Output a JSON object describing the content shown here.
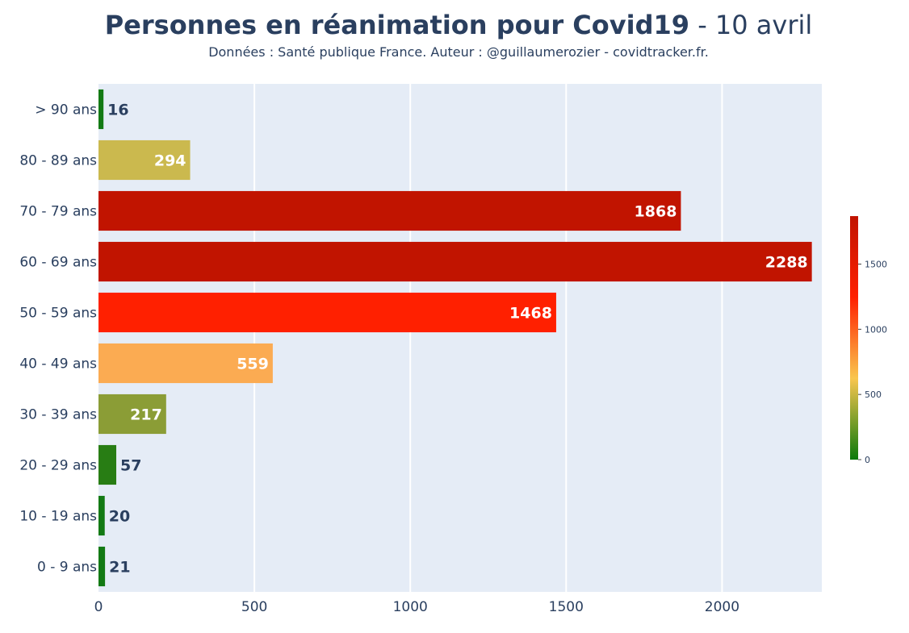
{
  "chart_data": {
    "type": "bar",
    "orientation": "horizontal",
    "title_main": "Personnes en réanimation pour Covid19",
    "title_date": " - 10 avril",
    "subtitle": "Données : Santé publique France. Auteur : @guillaumerozier - covidtracker.fr.",
    "categories": [
      "> 90 ans",
      "80 - 89 ans",
      "70 - 79 ans",
      "60 - 69 ans",
      "50 - 59 ans",
      "40 - 49 ans",
      "30 - 39 ans",
      "20 - 29 ans",
      "10 - 19 ans",
      "0 - 9 ans"
    ],
    "values": [
      16,
      294,
      1868,
      2288,
      1468,
      559,
      217,
      57,
      20,
      21
    ],
    "bar_colors": [
      "#137a14",
      "#cbb94e",
      "#c11400",
      "#c11400",
      "#ff2000",
      "#fbab52",
      "#8b9d36",
      "#287d14",
      "#137a14",
      "#137a14"
    ],
    "xlim": [
      0,
      2320
    ],
    "xticks": [
      0,
      500,
      1000,
      1500,
      2000
    ],
    "grid": true,
    "colorbar": {
      "ticks": [
        0,
        500,
        1000,
        1500
      ],
      "range": [
        0,
        1868
      ],
      "colors": [
        "#0a7a0a",
        "#f9c64e",
        "#ff2000",
        "#c11400"
      ]
    },
    "colors": {
      "plot_bg": "#e5ecf6",
      "grid": "#ffffff",
      "title": "#2a3f5f",
      "label_inside": "#ffffff",
      "label_outside": "#2a3f5f"
    }
  }
}
